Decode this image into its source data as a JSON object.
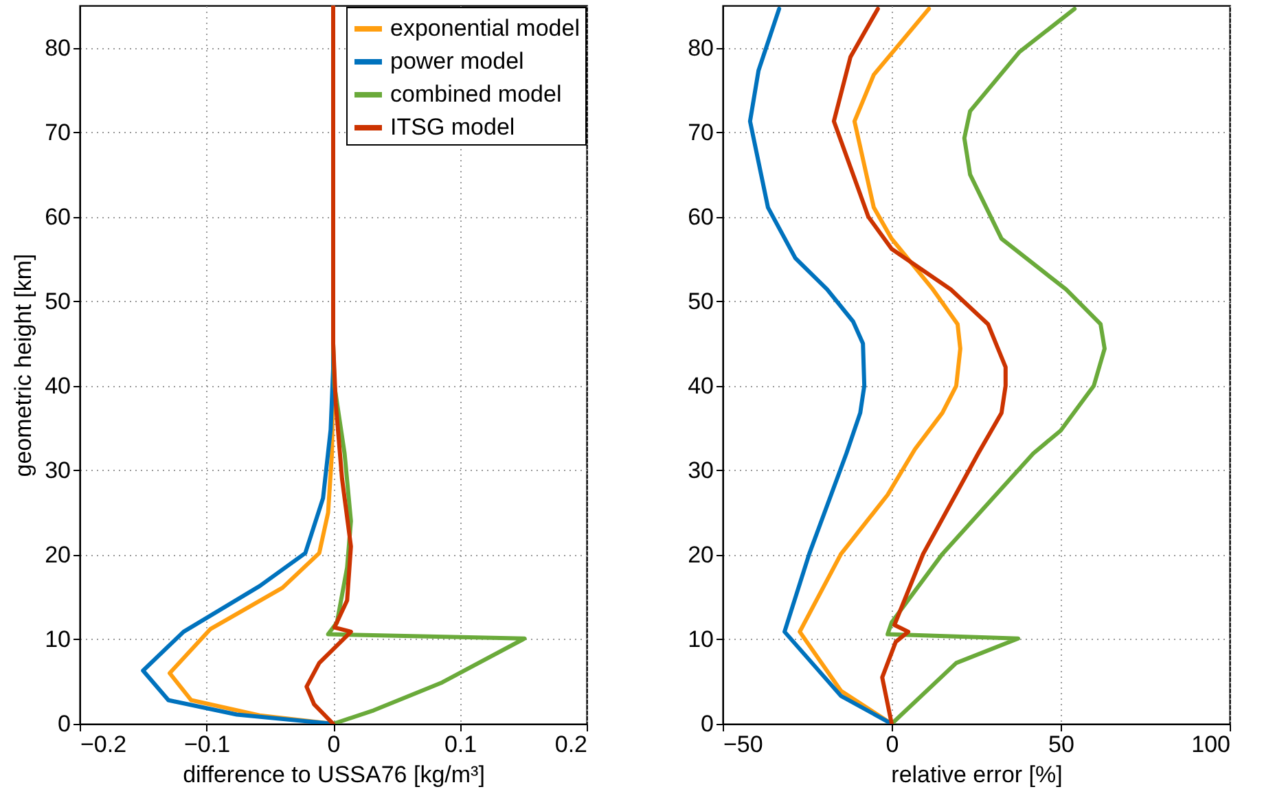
{
  "chart_data": [
    {
      "type": "line",
      "xlabel": "difference to USSA76 [kg/m³]",
      "ylabel": "geometric height [km]",
      "xlim": [
        -0.2,
        0.2
      ],
      "xticks": [
        {
          "value": -0.2,
          "label": "−0.2"
        },
        {
          "value": -0.1,
          "label": "−0.1"
        },
        0,
        0.1,
        0.2
      ],
      "ylim": [
        0,
        85
      ],
      "yticks": [
        0,
        10,
        20,
        30,
        40,
        50,
        60,
        70,
        80
      ],
      "grid": true,
      "legend": "top right",
      "marker": "none",
      "series": [
        {
          "name": "exponential model",
          "color": "#ff9e0f",
          "x": [
            0,
            -0.058,
            -0.112,
            -0.129,
            -0.097,
            -0.04,
            -0.011,
            -0.004,
            -0.001,
            0,
            0
          ],
          "values": [
            0,
            1.0,
            2.8,
            6.0,
            11.2,
            16.1,
            20.2,
            25,
            32,
            40,
            85
          ]
        },
        {
          "name": "power model",
          "color": "#0072bd",
          "x": [
            0,
            -0.076,
            -0.13,
            -0.15,
            -0.118,
            -0.058,
            -0.022,
            -0.008,
            -0.002,
            0,
            0
          ],
          "values": [
            0,
            1.1,
            2.8,
            6.3,
            10.9,
            16.3,
            20.2,
            26.7,
            34.8,
            42,
            85
          ]
        },
        {
          "name": "combined model",
          "color": "#6aaa3a",
          "x": [
            0,
            0.032,
            0.086,
            0.151,
            -0.004,
            0.003,
            0.011,
            0.014,
            0.009,
            0.001,
            0,
            0
          ],
          "values": [
            0,
            1.6,
            4.9,
            10.1,
            10.6,
            12,
            18.5,
            24,
            32,
            40,
            45,
            85
          ]
        },
        {
          "name": "ITSG model",
          "color": "#cc3300",
          "x": [
            0,
            -0.015,
            -0.021,
            -0.011,
            0.014,
            0.001,
            0.011,
            0.014,
            0.007,
            0.002,
            0,
            0
          ],
          "values": [
            0,
            2.3,
            4.4,
            7.2,
            10.9,
            11.4,
            14.6,
            21,
            29,
            38,
            45,
            85
          ]
        }
      ]
    },
    {
      "type": "line",
      "xlabel": "relative error [%]",
      "xlim": [
        -50,
        100
      ],
      "xticks": [
        {
          "value": -50,
          "label": "−50"
        },
        0,
        50,
        100
      ],
      "ylim": [
        0,
        85
      ],
      "yticks": [
        0,
        10,
        20,
        30,
        40,
        50,
        60,
        70,
        80
      ],
      "grid": true,
      "marker": "none",
      "series": [
        {
          "color": "#ff9e0f",
          "x": [
            0,
            -15,
            -27.2,
            -15,
            -1.2,
            6.9,
            15,
            19.1,
            20.3,
            19.5,
            12.2,
            0,
            -5.3,
            -11,
            -5.3,
            11
          ],
          "values": [
            0,
            3.9,
            10.9,
            20.1,
            27.1,
            32.5,
            36.8,
            40,
            44.4,
            47.3,
            51.4,
            57.4,
            61.1,
            71.3,
            76.8,
            84.6
          ]
        },
        {
          "color": "#0072bd",
          "x": [
            0,
            -15,
            -31.7,
            -24.4,
            -13.4,
            -9.3,
            -8.1,
            -8.5,
            -11.4,
            -19.1,
            -28.5,
            -36.6,
            -41.9,
            -39.4,
            -33.3
          ],
          "values": [
            0,
            3.3,
            10.9,
            20.1,
            32,
            36.8,
            40,
            45,
            47.6,
            51.4,
            55.1,
            61.1,
            71.3,
            77.3,
            84.6
          ]
        },
        {
          "color": "#6aaa3a",
          "x": [
            0,
            19.1,
            37.4,
            -1.2,
            0,
            15,
            41.9,
            50,
            59.8,
            63,
            61.8,
            51.6,
            32.5,
            23.2,
            21.5,
            23.2,
            37.8,
            54.1
          ],
          "values": [
            0,
            7.2,
            10.1,
            10.6,
            12,
            20.1,
            32,
            34.7,
            40,
            44.4,
            47.3,
            51.4,
            57.4,
            65,
            69.3,
            72.5,
            79.5,
            84.6
          ]
        },
        {
          "color": "#cc3300",
          "x": [
            0,
            -2.8,
            1.2,
            4.9,
            0.8,
            9.3,
            25.6,
            32.5,
            33.7,
            33.7,
            28.5,
            17.5,
            0,
            -6.9,
            -17.1,
            -12.2,
            -4.1
          ],
          "values": [
            0,
            5.5,
            9.7,
            10.9,
            11.7,
            20.1,
            32,
            36.8,
            40,
            42.2,
            47.3,
            51.4,
            56.2,
            60,
            71.3,
            78.9,
            84.6
          ]
        }
      ]
    }
  ]
}
